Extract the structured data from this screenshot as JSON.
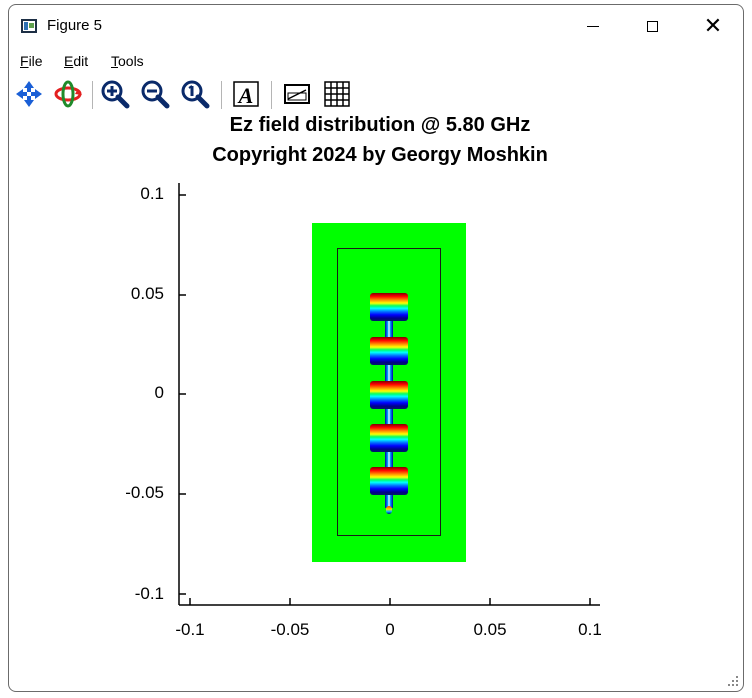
{
  "window": {
    "title": "Figure 5",
    "controls": {
      "minimize": "minimize",
      "maximize": "maximize",
      "close": "✕"
    }
  },
  "menu": {
    "items": [
      {
        "label": "File",
        "accel": "F",
        "rest": "ile"
      },
      {
        "label": "Edit",
        "accel": "E",
        "rest": "dit"
      },
      {
        "label": "Tools",
        "accel": "T",
        "rest": "ools"
      }
    ]
  },
  "toolbar": {
    "tools": [
      "pan-icon",
      "rotate-icon",
      "zoom-in-icon",
      "zoom-out-icon",
      "zoom-original-icon",
      "text-icon",
      "colorbar-icon",
      "grid-icon"
    ]
  },
  "plot": {
    "title_line1": "Ez field distribution @ 5.80 GHz",
    "title_line2": "Copyright 2024 by Georgy Moshkin",
    "y_ticks": [
      "0.1",
      "0.05",
      "0",
      "-0.05",
      "-0.1"
    ],
    "x_ticks": [
      "-0.1",
      "-0.05",
      "0",
      "0.05",
      "0.1"
    ]
  },
  "chart_data": {
    "type": "heatmap",
    "title": "Ez field distribution @ 5.80 GHz",
    "subtitle": "Copyright 2024 by Georgy Moshkin",
    "xlim": [
      -0.105,
      0.105
    ],
    "ylim": [
      -0.105,
      0.105
    ],
    "x_ticks": [
      -0.1,
      -0.05,
      0,
      0.05,
      0.1
    ],
    "y_ticks": [
      -0.1,
      -0.05,
      0,
      0.05,
      0.1
    ],
    "grid": false,
    "background_color": "#00ff00",
    "substrate_extent": {
      "x": [
        -0.038,
        0.038
      ],
      "y": [
        -0.085,
        0.085
      ]
    },
    "ground_outline": {
      "x": [
        -0.026,
        0.026
      ],
      "y": [
        -0.072,
        0.072
      ]
    },
    "patch_centers_y": [
      0.045,
      0.023,
      0.001,
      -0.021,
      -0.043
    ],
    "colormap": [
      "#800000",
      "#ff0000",
      "#ff8c00",
      "#ffff00",
      "#00ff66",
      "#00ffff",
      "#0077ff",
      "#0000ff",
      "#00008b"
    ]
  }
}
